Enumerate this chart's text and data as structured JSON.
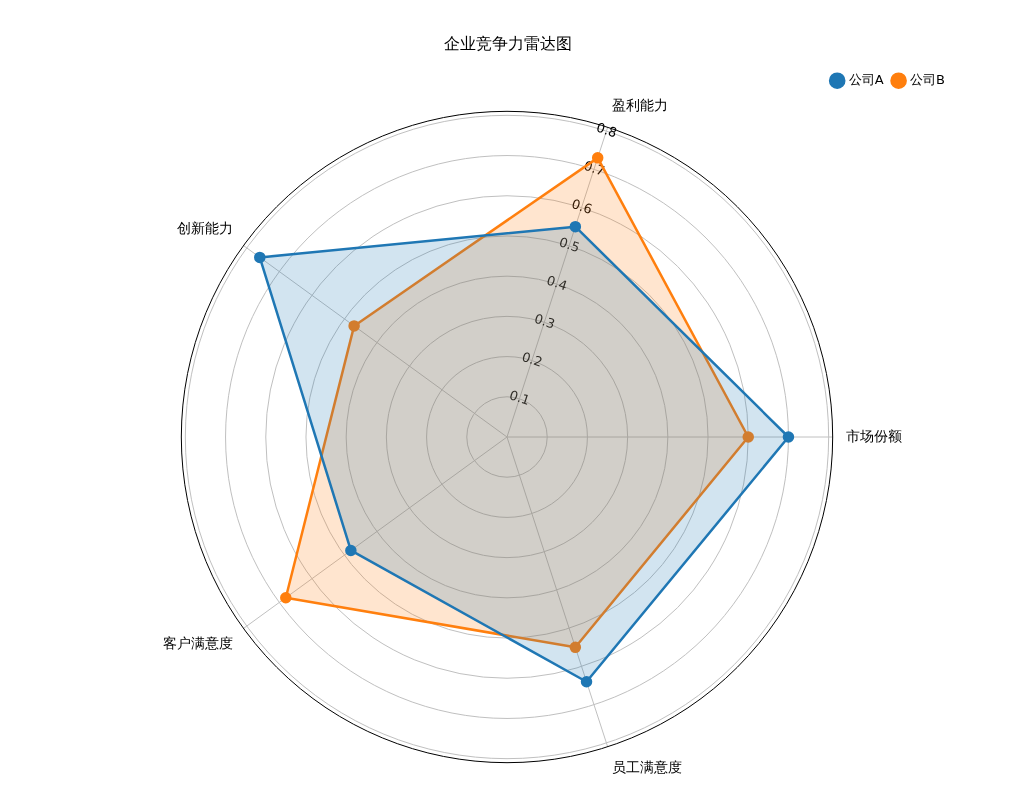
{
  "chart_data": {
    "type": "radar",
    "title": "企业竞争力雷达图",
    "categories": [
      "盈利能力",
      "市场份额",
      "员工满意度",
      "客户满意度",
      "创新能力"
    ],
    "series": [
      {
        "name": "公司A",
        "color": "#1f77b4",
        "values": [
          0.55,
          0.7,
          0.64,
          0.48,
          0.76
        ]
      },
      {
        "name": "公司B",
        "color": "#ff7f0e",
        "values": [
          0.73,
          0.6,
          0.55,
          0.68,
          0.47
        ]
      }
    ],
    "ylim": [
      0,
      0.81
    ],
    "yticks": [
      0.1,
      0.2,
      0.3,
      0.4,
      0.5,
      0.6,
      0.7,
      0.8
    ],
    "grid": true,
    "legend": "top right",
    "marker": "circle",
    "line_style": "solid"
  }
}
